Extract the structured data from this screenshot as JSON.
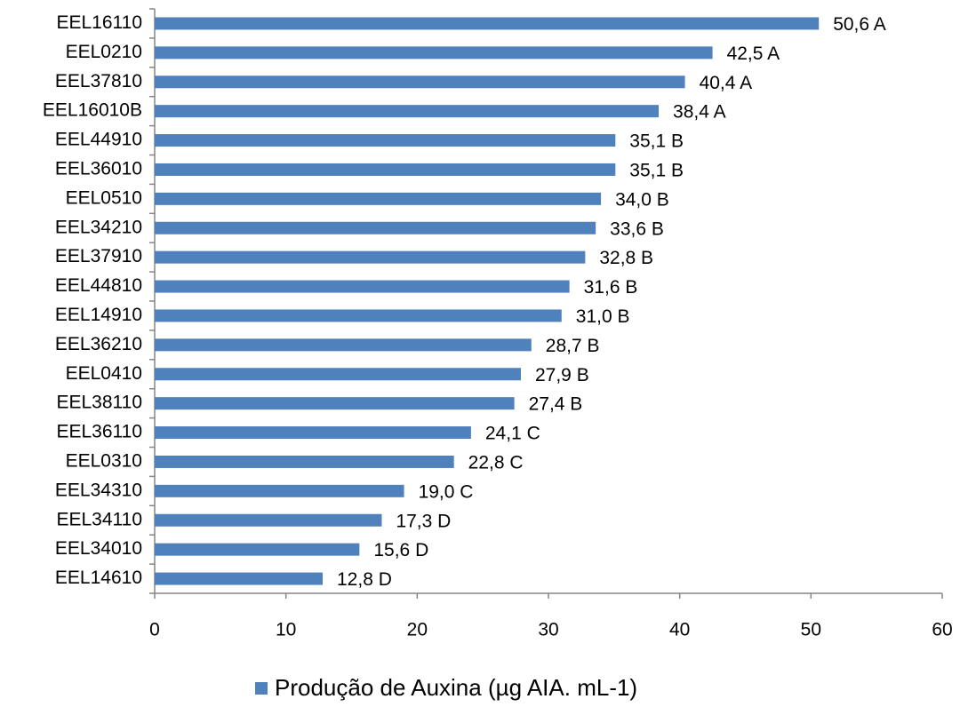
{
  "chart_data": {
    "type": "bar",
    "orientation": "horizontal",
    "categories": [
      "EEL16110",
      "EEL0210",
      "EEL37810",
      "EEL16010B",
      "EEL44910",
      "EEL36010",
      "EEL0510",
      "EEL34210",
      "EEL37910",
      "EEL44810",
      "EEL14910",
      "EEL36210",
      "EEL0410",
      "EEL38110",
      "EEL36110",
      "EEL0310",
      "EEL34310",
      "EEL34110",
      "EEL34010",
      "EEL14610"
    ],
    "series": [
      {
        "name": "Produção de Auxina (µg AIA. mL-1)",
        "color": "#4f81bd",
        "values": [
          50.6,
          42.5,
          40.4,
          38.4,
          35.1,
          35.1,
          34.0,
          33.6,
          32.8,
          31.6,
          31.0,
          28.7,
          27.9,
          27.4,
          24.1,
          22.8,
          19.0,
          17.3,
          15.6,
          12.8
        ],
        "value_labels": [
          "50,6 A",
          "42,5 A",
          "40,4 A",
          "38,4 A",
          "35,1 B",
          "35,1 B",
          "34,0 B",
          "33,6 B",
          "32,8 B",
          "31,6 B",
          "31,0 B",
          "28,7 B",
          "27,9 B",
          "27,4 B",
          "24,1 C",
          "22,8 C",
          "19,0 C",
          "17,3 D",
          "15,6 D",
          "12,8 D"
        ]
      }
    ],
    "xlim": [
      0,
      60
    ],
    "xticks": [
      0,
      10,
      20,
      30,
      40,
      50,
      60
    ],
    "legend": "bottom"
  }
}
